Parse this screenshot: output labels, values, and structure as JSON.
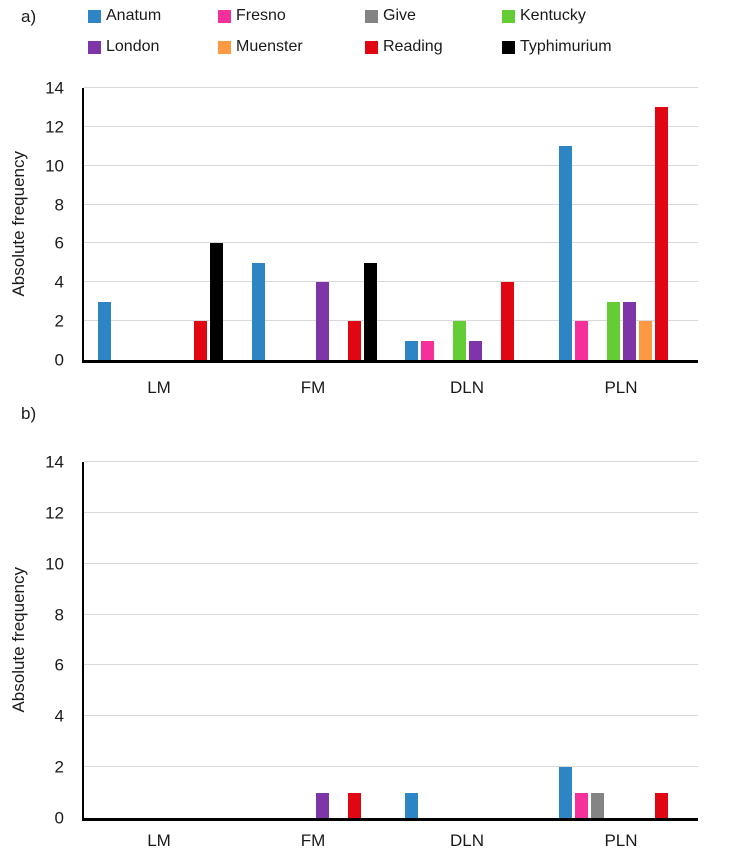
{
  "figure": {
    "panel_a_label": "a)",
    "panel_b_label": "b)"
  },
  "legend": {
    "items": [
      {
        "label": "Anatum",
        "color": "#2E85C5"
      },
      {
        "label": "Fresno",
        "color": "#F5309B"
      },
      {
        "label": "Give",
        "color": "#848484"
      },
      {
        "label": "Kentucky",
        "color": "#64CC34"
      },
      {
        "label": "London",
        "color": "#7D35A8"
      },
      {
        "label": "Muenster",
        "color": "#FB9A42"
      },
      {
        "label": "Reading",
        "color": "#E00712"
      },
      {
        "label": "Typhimurium",
        "color": "#000000"
      }
    ]
  },
  "chart_data": [
    {
      "type": "bar",
      "panel": "a",
      "title": "",
      "xlabel": "",
      "ylabel": "Absolute frequency",
      "ylim": [
        0,
        14
      ],
      "yticks": [
        0,
        2,
        4,
        6,
        8,
        10,
        12,
        14
      ],
      "grid": true,
      "legend_position": "top",
      "categories": [
        "LM",
        "FM",
        "DLN",
        "PLN"
      ],
      "series": [
        {
          "name": "Anatum",
          "color": "#2E85C5",
          "values": [
            3,
            5,
            1,
            11
          ]
        },
        {
          "name": "Fresno",
          "color": "#F5309B",
          "values": [
            0,
            0,
            1,
            2
          ]
        },
        {
          "name": "Give",
          "color": "#848484",
          "values": [
            0,
            0,
            0,
            0
          ]
        },
        {
          "name": "Kentucky",
          "color": "#64CC34",
          "values": [
            0,
            0,
            2,
            3
          ]
        },
        {
          "name": "London",
          "color": "#7D35A8",
          "values": [
            0,
            4,
            1,
            3
          ]
        },
        {
          "name": "Muenster",
          "color": "#FB9A42",
          "values": [
            0,
            0,
            0,
            2
          ]
        },
        {
          "name": "Reading",
          "color": "#E00712",
          "values": [
            2,
            2,
            4,
            13
          ]
        },
        {
          "name": "Typhimurium",
          "color": "#000000",
          "values": [
            6,
            5,
            0,
            0
          ]
        }
      ]
    },
    {
      "type": "bar",
      "panel": "b",
      "title": "",
      "xlabel": "",
      "ylabel": "Absolute frequency",
      "ylim": [
        0,
        14
      ],
      "yticks": [
        0,
        2,
        4,
        6,
        8,
        10,
        12,
        14
      ],
      "grid": true,
      "legend_position": "none",
      "categories": [
        "LM",
        "FM",
        "DLN",
        "PLN"
      ],
      "series": [
        {
          "name": "Anatum",
          "color": "#2E85C5",
          "values": [
            0,
            0,
            1,
            2
          ]
        },
        {
          "name": "Fresno",
          "color": "#F5309B",
          "values": [
            0,
            0,
            0,
            1
          ]
        },
        {
          "name": "Give",
          "color": "#848484",
          "values": [
            0,
            0,
            0,
            1
          ]
        },
        {
          "name": "Kentucky",
          "color": "#64CC34",
          "values": [
            0,
            0,
            0,
            0
          ]
        },
        {
          "name": "London",
          "color": "#7D35A8",
          "values": [
            0,
            1,
            0,
            0
          ]
        },
        {
          "name": "Muenster",
          "color": "#FB9A42",
          "values": [
            0,
            0,
            0,
            0
          ]
        },
        {
          "name": "Reading",
          "color": "#E00712",
          "values": [
            0,
            1,
            0,
            1
          ]
        },
        {
          "name": "Typhimurium",
          "color": "#000000",
          "values": [
            0,
            0,
            0,
            0
          ]
        }
      ]
    }
  ]
}
